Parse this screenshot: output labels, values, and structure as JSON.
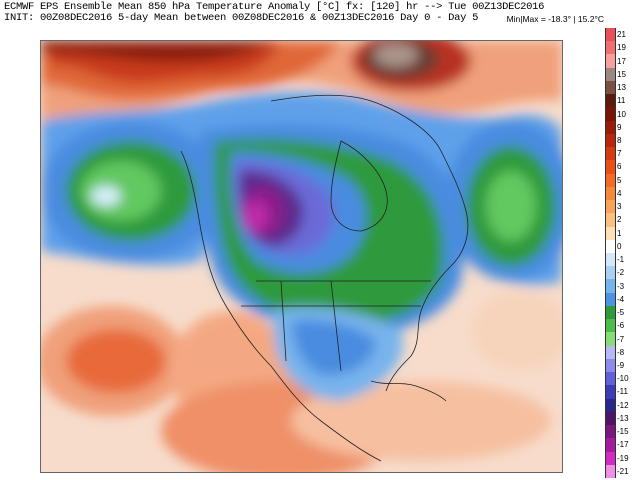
{
  "header": {
    "line1": "ECMWF EPS Ensemble Mean 850 hPa Temperature Anomaly [°C] fx: [120] hr --> Tue 00Z13DEC2016",
    "line2": "INIT: 00Z08DEC2016 5-day Mean between 00Z08DEC2016 & 00Z13DEC2016  Day 0 - Day 5",
    "minmax": "Min|Max = -18.3° | 15.2°C"
  },
  "colorbar": {
    "levels": [
      {
        "label": "21",
        "color": "#e8505a"
      },
      {
        "label": "19",
        "color": "#f07070"
      },
      {
        "label": "17",
        "color": "#f8a0a0"
      },
      {
        "label": "15",
        "color": "#9c8880"
      },
      {
        "label": "13",
        "color": "#7a5040"
      },
      {
        "label": "11",
        "color": "#5a1a10"
      },
      {
        "label": "10",
        "color": "#781408"
      },
      {
        "label": "9",
        "color": "#9a1c08"
      },
      {
        "label": "8",
        "color": "#b82810"
      },
      {
        "label": "7",
        "color": "#d23c10"
      },
      {
        "label": "6",
        "color": "#e85018"
      },
      {
        "label": "5",
        "color": "#f06c28"
      },
      {
        "label": "4",
        "color": "#f4883c"
      },
      {
        "label": "3",
        "color": "#f8a25a"
      },
      {
        "label": "2",
        "color": "#fbc080"
      },
      {
        "label": "1",
        "color": "#fde0b8"
      },
      {
        "label": "0",
        "color": "#ffffff"
      },
      {
        "label": "-1",
        "color": "#d4e8f8"
      },
      {
        "label": "-2",
        "color": "#a8d0f4"
      },
      {
        "label": "-3",
        "color": "#78b4ec"
      },
      {
        "label": "-4",
        "color": "#4c94e0"
      },
      {
        "label": "-5",
        "color": "#2e9a3c"
      },
      {
        "label": "-6",
        "color": "#4cbc4c"
      },
      {
        "label": "-7",
        "color": "#86dc78"
      },
      {
        "label": "-8",
        "color": "#b8b8f4"
      },
      {
        "label": "-9",
        "color": "#8c8ce8"
      },
      {
        "label": "-10",
        "color": "#6060d8"
      },
      {
        "label": "-11",
        "color": "#3c3cb8"
      },
      {
        "label": "-12",
        "color": "#28288c"
      },
      {
        "label": "-13",
        "color": "#501464"
      },
      {
        "label": "-15",
        "color": "#78187c"
      },
      {
        "label": "-17",
        "color": "#a41c9c"
      },
      {
        "label": "-19",
        "color": "#d02cc0"
      },
      {
        "label": "-21",
        "color": "#f090e4"
      }
    ]
  },
  "colors": {
    "ocean_background": "#f6e0d4",
    "warm": "#e8602a",
    "cold_blue": "#3c7ee0",
    "cold_green": "#30a840",
    "cold_purple": "#6a2a9c"
  }
}
